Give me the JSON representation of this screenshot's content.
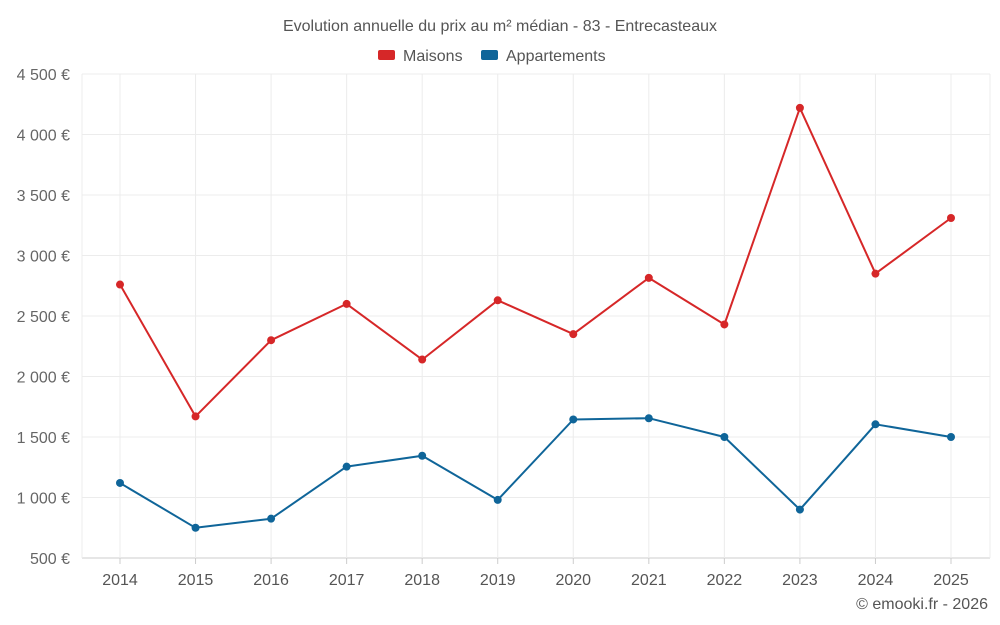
{
  "chart_data": {
    "type": "line",
    "title": "Evolution annuelle du prix au m² médian - 83 - Entrecasteaux",
    "categories": [
      "2014",
      "2015",
      "2016",
      "2017",
      "2018",
      "2019",
      "2020",
      "2021",
      "2022",
      "2023",
      "2024",
      "2025"
    ],
    "series": [
      {
        "name": "Maisons",
        "color": "#d62728",
        "values": [
          2760,
          1670,
          2300,
          2600,
          2140,
          2630,
          2350,
          2815,
          2430,
          4220,
          2850,
          3310
        ]
      },
      {
        "name": "Appartements",
        "color": "#0f6599",
        "values": [
          1120,
          750,
          825,
          1255,
          1345,
          980,
          1645,
          1655,
          1500,
          900,
          1605,
          1500
        ]
      }
    ],
    "ylim": [
      500,
      4500
    ],
    "yticks": [
      500,
      1000,
      1500,
      2000,
      2500,
      3000,
      3500,
      4000,
      4500
    ],
    "ytick_labels": [
      "500 €",
      "1 000 €",
      "1 500 €",
      "2 000 €",
      "2 500 €",
      "3 000 €",
      "3 500 €",
      "4 000 €",
      "4 500 €"
    ],
    "grid": true,
    "legend_position": "top-center"
  },
  "credit": "© emooki.fr - 2026"
}
